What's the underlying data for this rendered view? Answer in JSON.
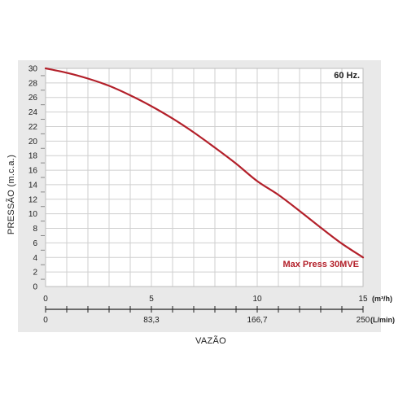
{
  "chart_data": {
    "type": "line",
    "frequency_label": "60 Hz.",
    "ylabel": "PRESSÃO (m.c.a.)",
    "xlabel": "VAZÃO",
    "ylim": [
      0,
      30
    ],
    "y_ticks": [
      0,
      2,
      4,
      6,
      8,
      10,
      12,
      14,
      16,
      18,
      20,
      22,
      24,
      26,
      28,
      30
    ],
    "xlim": [
      0,
      15
    ],
    "x_ticks_primary": [
      0,
      5,
      10,
      15
    ],
    "x_unit_primary": "(m³/h)",
    "x_ticks_secondary": [
      {
        "at": 0,
        "label": "0"
      },
      {
        "at": 5,
        "label": "83,3"
      },
      {
        "at": 10,
        "label": "166,7"
      },
      {
        "at": 15,
        "label": "250"
      }
    ],
    "x_unit_secondary": "(L/min)",
    "grid": true,
    "series": [
      {
        "name": "Max Press 30MVE",
        "color": "#b3202a",
        "x": [
          0,
          1,
          2,
          3,
          4,
          5,
          6,
          7,
          8,
          9,
          10,
          11,
          12,
          13,
          14,
          15
        ],
        "y": [
          30,
          29.4,
          28.6,
          27.6,
          26.3,
          24.8,
          23.1,
          21.2,
          19.1,
          16.9,
          14.5,
          12.6,
          10.4,
          8.1,
          5.9,
          4
        ]
      }
    ]
  }
}
